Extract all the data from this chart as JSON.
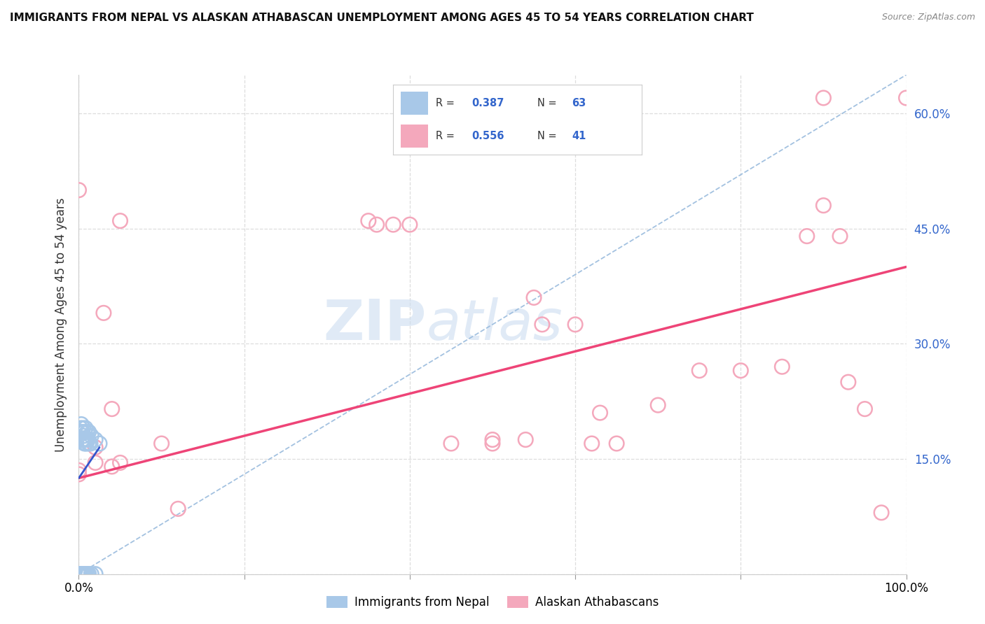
{
  "title": "IMMIGRANTS FROM NEPAL VS ALASKAN ATHABASCAN UNEMPLOYMENT AMONG AGES 45 TO 54 YEARS CORRELATION CHART",
  "source": "Source: ZipAtlas.com",
  "ylabel": "Unemployment Among Ages 45 to 54 years",
  "xlim": [
    0.0,
    1.0
  ],
  "ylim": [
    0.0,
    0.65
  ],
  "yticks": [
    0.0,
    0.15,
    0.3,
    0.45,
    0.6
  ],
  "ytick_labels": [
    "",
    "15.0%",
    "30.0%",
    "45.0%",
    "60.0%"
  ],
  "nepal_R": 0.387,
  "nepal_N": 63,
  "athabascan_R": 0.556,
  "athabascan_N": 41,
  "nepal_color": "#a8c8e8",
  "athabascan_color": "#f4a8bc",
  "nepal_line_color": "#3355cc",
  "athabascan_line_color": "#ee4477",
  "dash_line_color": "#99bbdd",
  "watermark_color": "#ccddf0",
  "background_color": "#ffffff",
  "grid_color": "#dddddd",
  "nepal_points": [
    [
      0.0,
      0.0
    ],
    [
      0.0,
      0.0
    ],
    [
      0.0,
      0.0
    ],
    [
      0.0,
      0.0
    ],
    [
      0.0,
      0.0
    ],
    [
      0.0,
      0.0
    ],
    [
      0.0,
      0.0
    ],
    [
      0.0,
      0.0
    ],
    [
      0.0,
      0.0
    ],
    [
      0.0,
      0.0
    ],
    [
      0.0,
      0.0
    ],
    [
      0.0,
      0.0
    ],
    [
      0.0,
      0.0
    ],
    [
      0.0,
      0.0
    ],
    [
      0.0,
      0.0
    ],
    [
      0.0,
      0.0
    ],
    [
      0.0,
      0.0
    ],
    [
      0.0,
      0.0
    ],
    [
      0.0,
      0.0
    ],
    [
      0.002,
      0.0
    ],
    [
      0.002,
      0.0
    ],
    [
      0.002,
      0.0
    ],
    [
      0.003,
      0.0
    ],
    [
      0.003,
      0.0
    ],
    [
      0.003,
      0.0
    ],
    [
      0.004,
      0.0
    ],
    [
      0.004,
      0.0
    ],
    [
      0.005,
      0.0
    ],
    [
      0.005,
      0.0
    ],
    [
      0.005,
      0.0
    ],
    [
      0.006,
      0.0
    ],
    [
      0.006,
      0.0
    ],
    [
      0.007,
      0.0
    ],
    [
      0.007,
      0.0
    ],
    [
      0.008,
      0.0
    ],
    [
      0.01,
      0.0
    ],
    [
      0.01,
      0.0
    ],
    [
      0.012,
      0.0
    ],
    [
      0.015,
      0.0
    ],
    [
      0.02,
      0.0
    ],
    [
      0.002,
      0.19
    ],
    [
      0.003,
      0.185
    ],
    [
      0.004,
      0.185
    ],
    [
      0.004,
      0.175
    ],
    [
      0.005,
      0.19
    ],
    [
      0.005,
      0.175
    ],
    [
      0.006,
      0.18
    ],
    [
      0.006,
      0.175
    ],
    [
      0.007,
      0.185
    ],
    [
      0.007,
      0.17
    ],
    [
      0.008,
      0.19
    ],
    [
      0.008,
      0.175
    ],
    [
      0.009,
      0.17
    ],
    [
      0.01,
      0.185
    ],
    [
      0.01,
      0.175
    ],
    [
      0.011,
      0.175
    ],
    [
      0.012,
      0.185
    ],
    [
      0.012,
      0.17
    ],
    [
      0.014,
      0.17
    ],
    [
      0.015,
      0.18
    ],
    [
      0.02,
      0.175
    ],
    [
      0.025,
      0.17
    ],
    [
      0.003,
      0.195
    ]
  ],
  "athabascan_points": [
    [
      0.0,
      0.0
    ],
    [
      0.0,
      0.0
    ],
    [
      0.0,
      0.0
    ],
    [
      0.0,
      0.13
    ],
    [
      0.0,
      0.135
    ],
    [
      0.0,
      0.5
    ],
    [
      0.02,
      0.165
    ],
    [
      0.02,
      0.145
    ],
    [
      0.03,
      0.34
    ],
    [
      0.04,
      0.215
    ],
    [
      0.04,
      0.14
    ],
    [
      0.05,
      0.46
    ],
    [
      0.05,
      0.145
    ],
    [
      0.1,
      0.17
    ],
    [
      0.12,
      0.085
    ],
    [
      0.35,
      0.46
    ],
    [
      0.36,
      0.455
    ],
    [
      0.38,
      0.455
    ],
    [
      0.4,
      0.455
    ],
    [
      0.45,
      0.17
    ],
    [
      0.5,
      0.17
    ],
    [
      0.5,
      0.175
    ],
    [
      0.54,
      0.175
    ],
    [
      0.55,
      0.36
    ],
    [
      0.56,
      0.325
    ],
    [
      0.6,
      0.325
    ],
    [
      0.62,
      0.17
    ],
    [
      0.63,
      0.21
    ],
    [
      0.65,
      0.17
    ],
    [
      0.7,
      0.22
    ],
    [
      0.75,
      0.265
    ],
    [
      0.8,
      0.265
    ],
    [
      0.85,
      0.27
    ],
    [
      0.88,
      0.44
    ],
    [
      0.9,
      0.62
    ],
    [
      0.9,
      0.48
    ],
    [
      0.92,
      0.44
    ],
    [
      0.93,
      0.25
    ],
    [
      0.95,
      0.215
    ],
    [
      0.97,
      0.08
    ],
    [
      1.0,
      0.62
    ]
  ],
  "nepal_line_x": [
    0.0,
    0.025
  ],
  "nepal_line_y": [
    0.125,
    0.165
  ],
  "athabascan_line_x": [
    0.0,
    1.0
  ],
  "athabascan_line_y": [
    0.125,
    0.4
  ],
  "dash_line_x": [
    0.0,
    1.0
  ],
  "dash_line_y": [
    0.0,
    0.65
  ]
}
